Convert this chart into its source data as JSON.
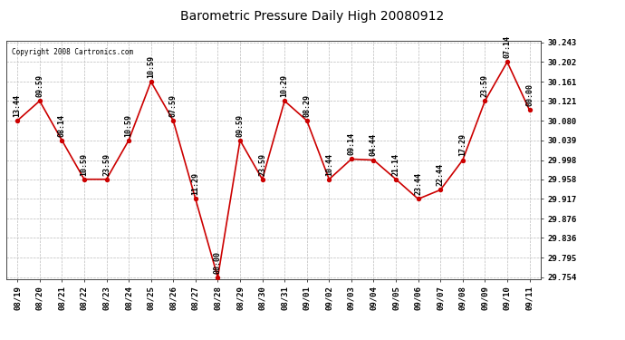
{
  "title": "Barometric Pressure Daily High 20080912",
  "copyright": "Copyright 2008 Cartronics.com",
  "x_labels": [
    "08/19",
    "08/20",
    "08/21",
    "08/22",
    "08/23",
    "08/24",
    "08/25",
    "08/26",
    "08/27",
    "08/28",
    "08/29",
    "08/30",
    "08/31",
    "09/01",
    "09/02",
    "09/03",
    "09/04",
    "09/05",
    "09/06",
    "09/07",
    "09/08",
    "09/09",
    "09/10",
    "09/11"
  ],
  "y_values": [
    30.08,
    30.121,
    30.039,
    29.958,
    29.958,
    30.039,
    30.161,
    30.08,
    29.917,
    29.754,
    30.039,
    29.958,
    30.121,
    30.08,
    29.958,
    30.0,
    29.998,
    29.958,
    29.917,
    29.936,
    29.998,
    30.121,
    30.202,
    30.102
  ],
  "point_labels": [
    "13:44",
    "09:59",
    "08:14",
    "10:59",
    "23:59",
    "10:59",
    "10:59",
    "07:59",
    "11:29",
    "00:00",
    "09:59",
    "23:59",
    "10:29",
    "08:29",
    "10:44",
    "09:14",
    "04:44",
    "21:14",
    "23:44",
    "22:44",
    "17:29",
    "23:59",
    "07:14",
    "00:00"
  ],
  "y_min": 29.754,
  "y_max": 30.243,
  "y_ticks": [
    29.754,
    29.795,
    29.836,
    29.876,
    29.917,
    29.958,
    29.998,
    30.039,
    30.08,
    30.121,
    30.161,
    30.202,
    30.243
  ],
  "line_color": "#cc0000",
  "marker_color": "#cc0000",
  "bg_color": "#ffffff",
  "grid_color": "#bbbbbb",
  "title_fontsize": 10,
  "label_fontsize": 6,
  "tick_fontsize": 6.5,
  "copyright_fontsize": 5.5
}
